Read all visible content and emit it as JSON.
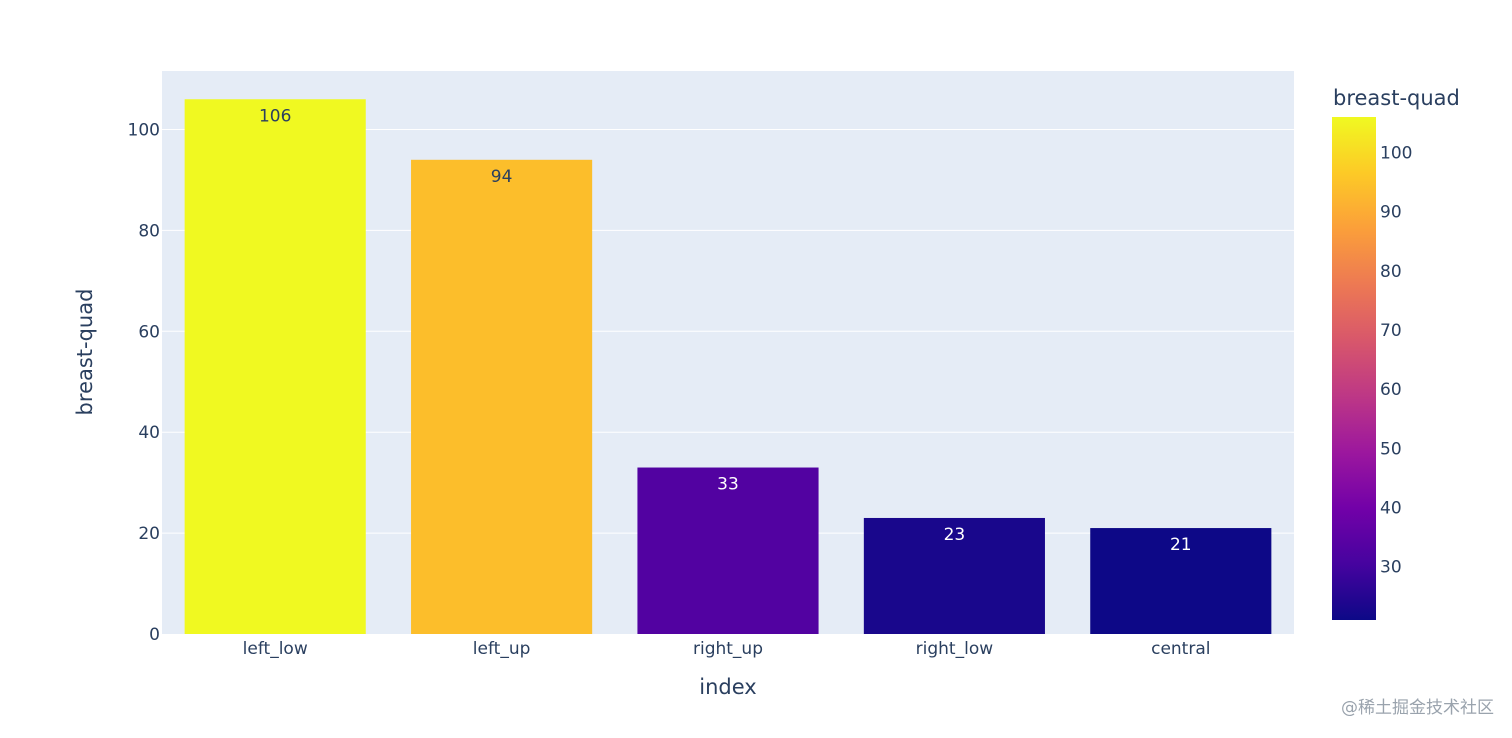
{
  "chart_data": {
    "type": "bar",
    "categories": [
      "left_low",
      "left_up",
      "right_up",
      "right_low",
      "central"
    ],
    "values": [
      106,
      94,
      33,
      23,
      21
    ],
    "data_labels": [
      "106",
      "94",
      "33",
      "23",
      "21"
    ],
    "xlabel": "index",
    "ylabel": "breast-quad",
    "ylim": [
      0,
      111.6
    ],
    "yticks": [
      0,
      20,
      40,
      60,
      80,
      100
    ],
    "grid": true,
    "colorscale": "plasma",
    "colorbar": {
      "title": "breast-quad",
      "range": [
        21,
        106
      ],
      "ticks": [
        30,
        40,
        50,
        60,
        70,
        80,
        90,
        100
      ]
    },
    "colors": {
      "plot_bg": "#e5ecf6",
      "grid": "#ffffff",
      "text": "#2a3f5f"
    }
  },
  "watermark": "@稀土掘金技术社区"
}
